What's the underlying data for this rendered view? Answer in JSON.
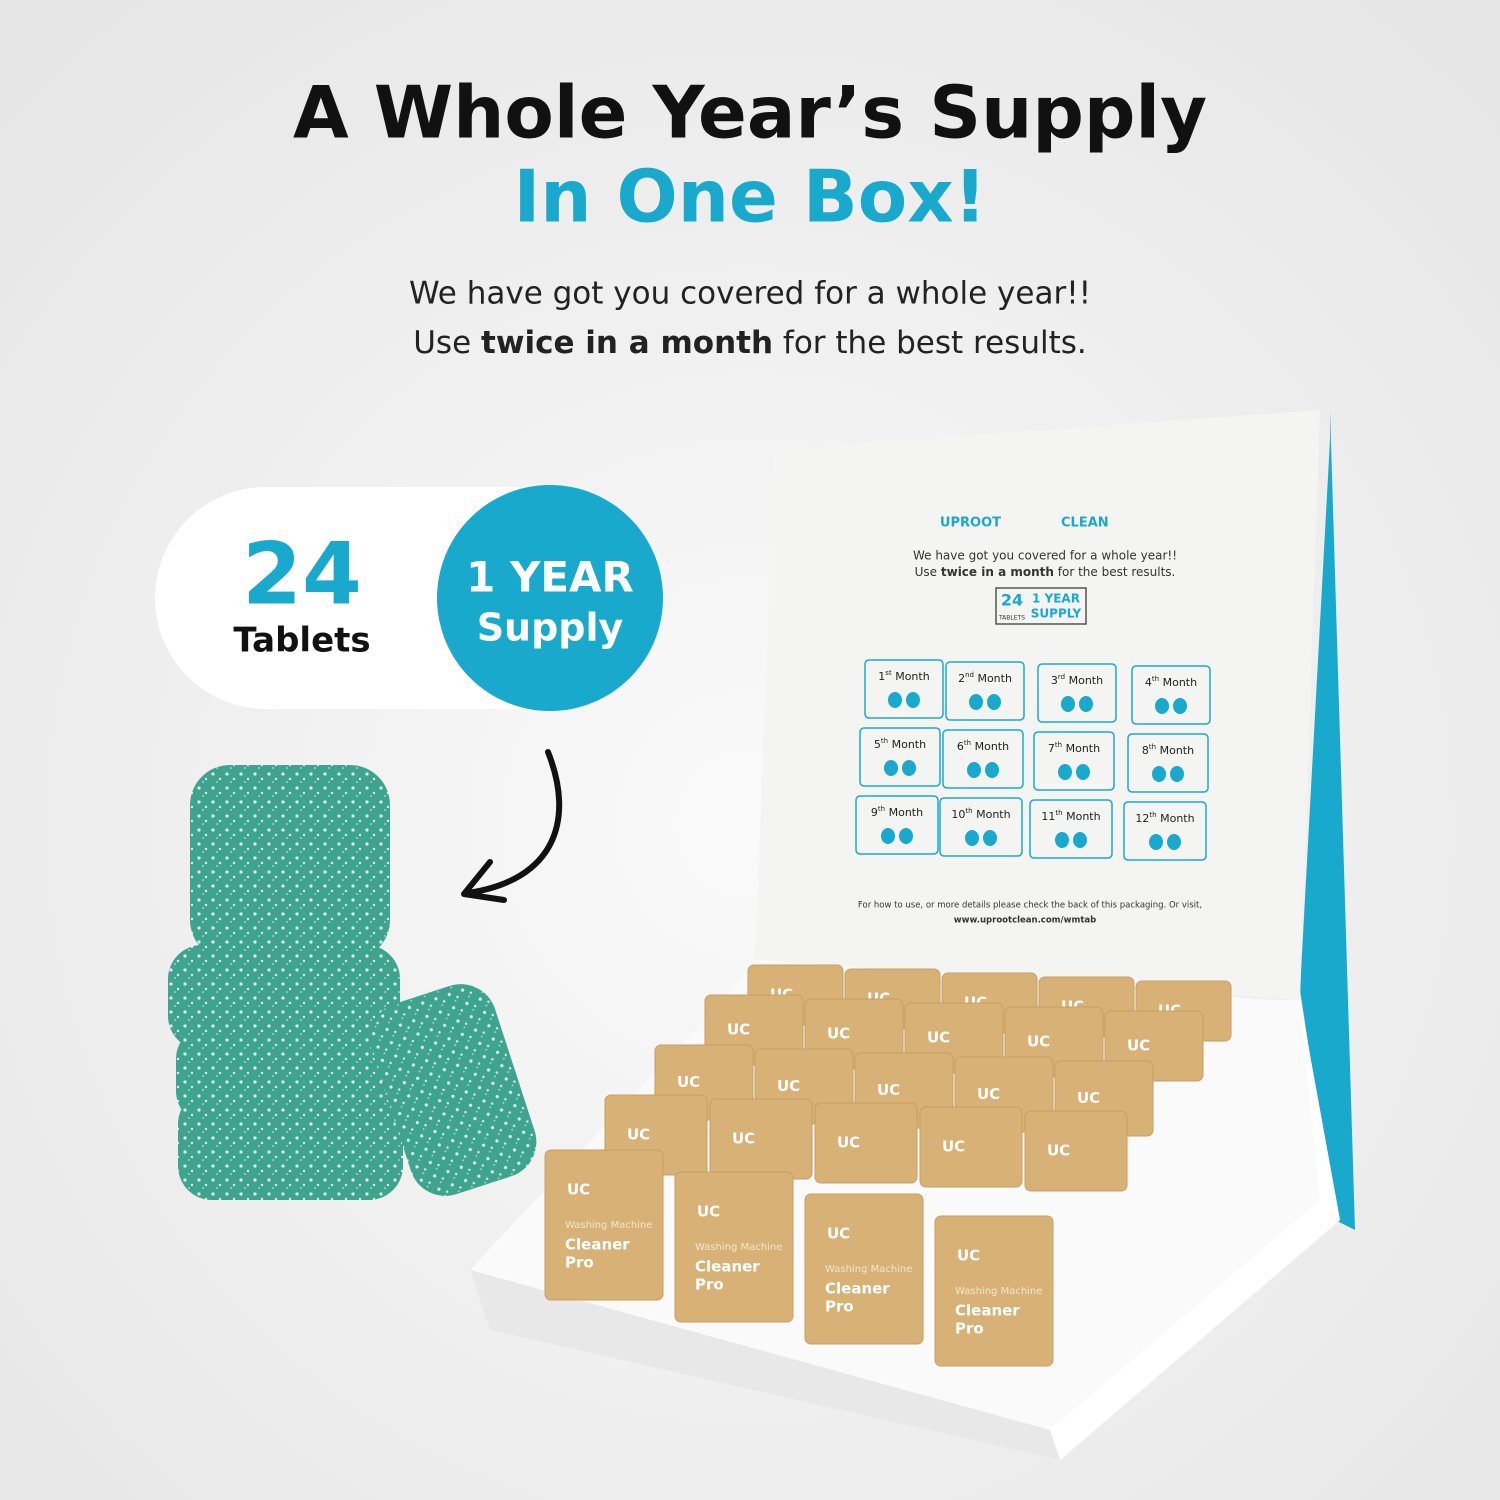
{
  "header": {
    "title_line1": "A Whole Year’s Supply",
    "title_line2": "In One Box!",
    "subtitle_line1": "We have got you covered for a whole year!!",
    "subtitle_line2_pre": "Use",
    "subtitle_line2_bold": "twice in a month",
    "subtitle_line2_post": "for the best results."
  },
  "badge": {
    "count": "24",
    "count_label": "Tablets",
    "circle_line1": "1 YEAR",
    "circle_line2": "Supply"
  },
  "box": {
    "brand_left": "UPROOT",
    "brand_right": "CLEAN",
    "text_line1": "We have got you covered for a whole year!!",
    "text_line2_pre": "Use",
    "text_line2_bold": "twice in a month",
    "text_line2_post": "for the best results.",
    "stamp_count": "24",
    "stamp_count_label": "TABLETS",
    "stamp_line1": "1 YEAR",
    "stamp_line2": "SUPPLY",
    "months": [
      {
        "num": "1",
        "suffix": "st",
        "label": "Month"
      },
      {
        "num": "2",
        "suffix": "nd",
        "label": "Month"
      },
      {
        "num": "3",
        "suffix": "rd",
        "label": "Month"
      },
      {
        "num": "4",
        "suffix": "th",
        "label": "Month"
      },
      {
        "num": "5",
        "suffix": "th",
        "label": "Month"
      },
      {
        "num": "6",
        "suffix": "th",
        "label": "Month"
      },
      {
        "num": "7",
        "suffix": "th",
        "label": "Month"
      },
      {
        "num": "8",
        "suffix": "th",
        "label": "Month"
      },
      {
        "num": "9",
        "suffix": "th",
        "label": "Month"
      },
      {
        "num": "10",
        "suffix": "th",
        "label": "Month"
      },
      {
        "num": "11",
        "suffix": "th",
        "label": "Month"
      },
      {
        "num": "12",
        "suffix": "th",
        "label": "Month"
      }
    ],
    "footer_line1": "For how to use, or more details please check the back of this packaging. Or visit,",
    "footer_line2": "www.uprootclean.com/wmtab"
  },
  "packet": {
    "logo": "UC",
    "line1": "Washing Machine",
    "line2": "Cleaner",
    "line3": "Pro"
  }
}
